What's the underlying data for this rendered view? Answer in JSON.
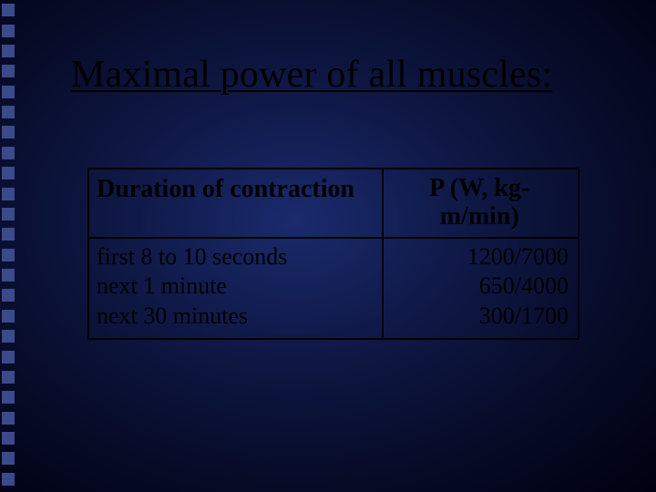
{
  "slide": {
    "background_gradient": {
      "inner": "#1a2a6c",
      "mid": "#0f1845",
      "outer": "#060a25",
      "edge": "#000010"
    },
    "sidebar_square_color": "#3a4a8a",
    "sidebar_square_count": 24,
    "title": "Maximal power of all muscles:",
    "title_color": "#000000",
    "title_fontsize": 42,
    "table": {
      "border_color": "#000000",
      "header": {
        "left": "Duration of contraction",
        "right": "P (W, kg-m/min)",
        "fontsize": 28,
        "font_weight": "bold"
      },
      "body_fontsize": 26,
      "rows": [
        {
          "left": "first 8 to 10 seconds",
          "right": "1200/7000"
        },
        {
          "left": "next 1 minute",
          "right": "650/4000"
        },
        {
          "left": "next 30 minutes",
          "right": "300/1700"
        }
      ]
    }
  }
}
